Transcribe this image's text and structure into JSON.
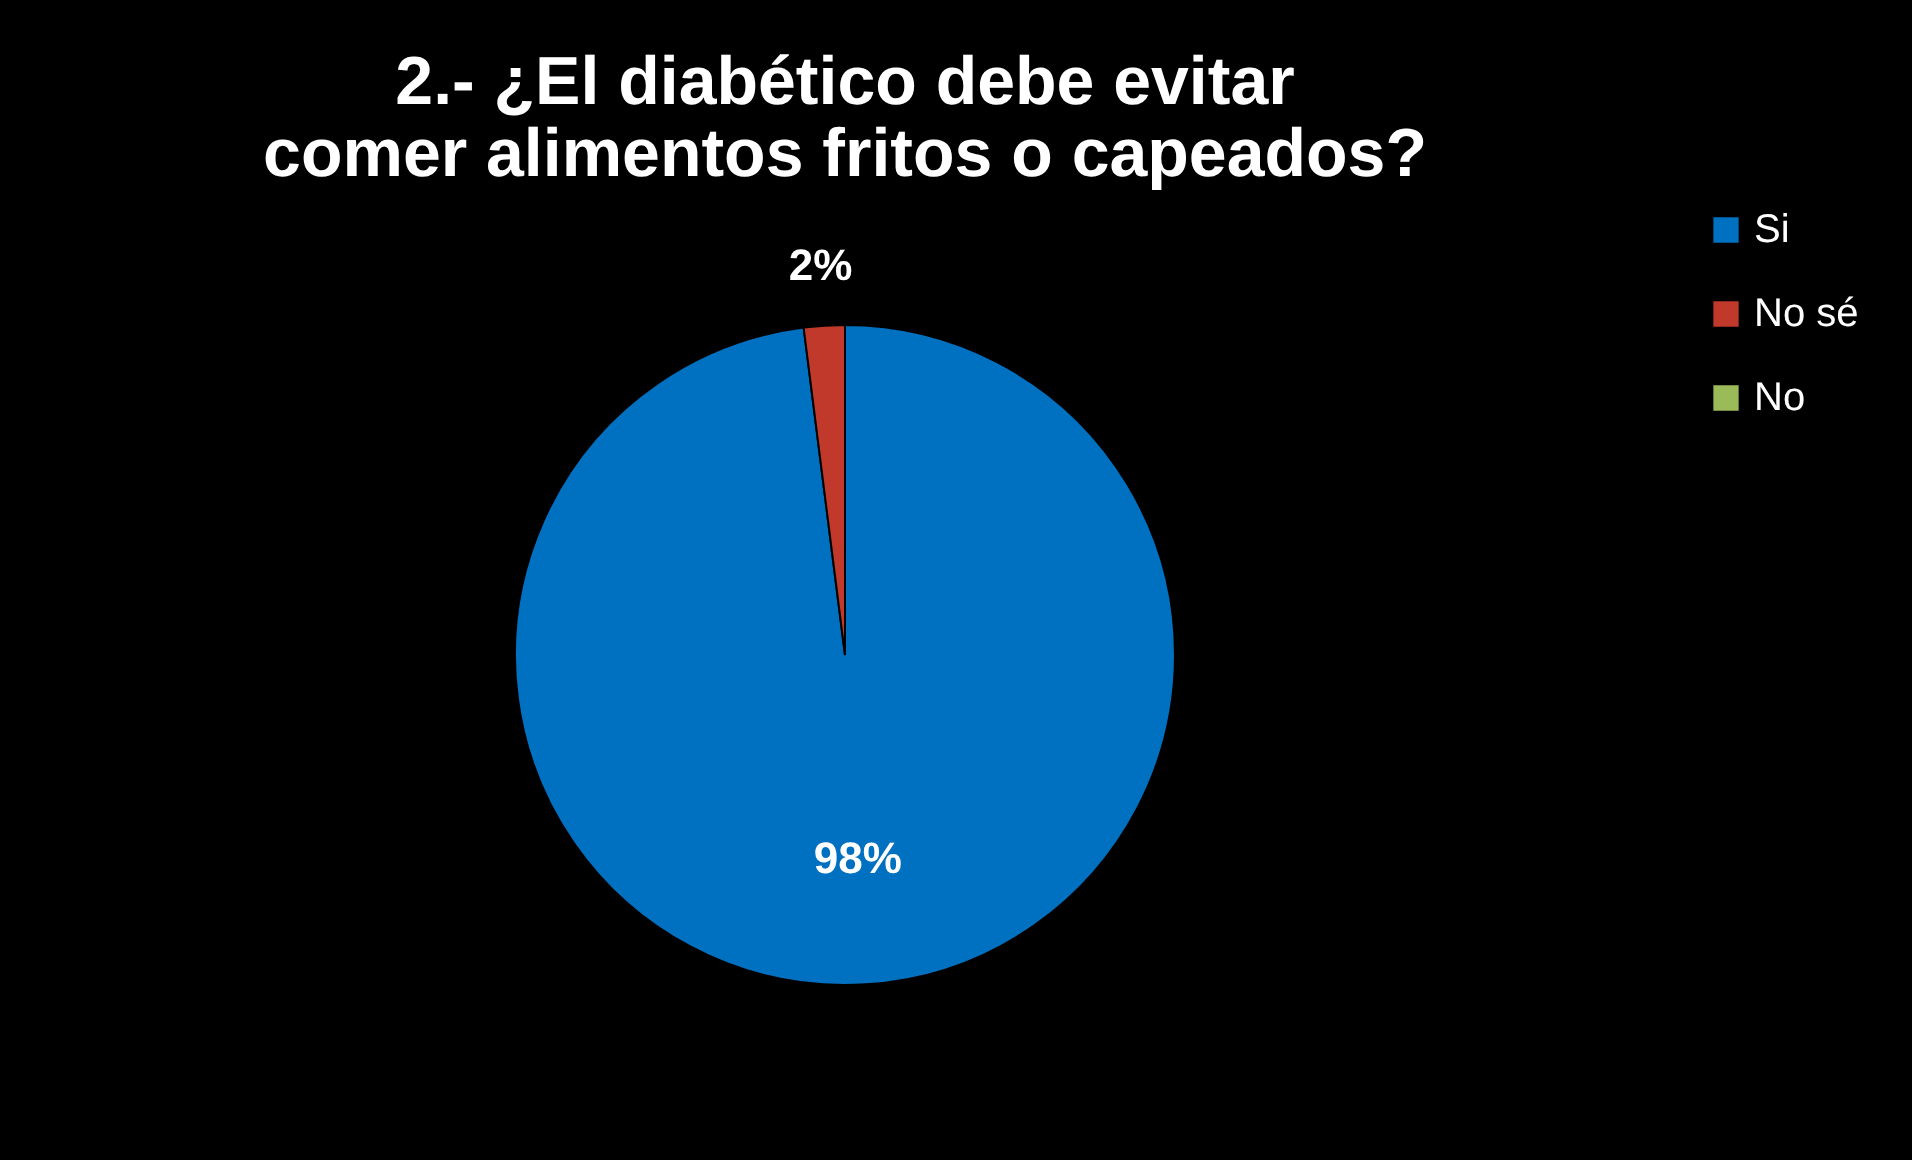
{
  "chart_data": {
    "type": "pie",
    "title": "2.- ¿El diabético debe evitar comer alimentos fritos o capeados?",
    "categories": [
      "Si",
      "No sé",
      "No"
    ],
    "values": [
      98,
      2,
      0
    ],
    "colors": [
      "#0070c0",
      "#c0392b",
      "#9bbb59"
    ],
    "value_labels": [
      "98%",
      "2%",
      null
    ],
    "legend": "right"
  }
}
